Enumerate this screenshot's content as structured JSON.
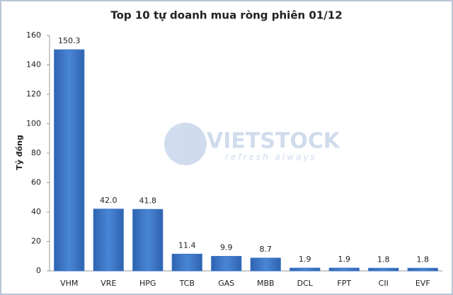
{
  "chart_data": {
    "type": "bar",
    "title": "Top 10 tự doanh mua ròng phiên 01/12",
    "ylabel": "Tỷ đồng",
    "categories": [
      "VHM",
      "VRE",
      "HPG",
      "TCB",
      "GAS",
      "MBB",
      "DCL",
      "FPT",
      "CII",
      "EVF"
    ],
    "values": [
      150.3,
      42.0,
      41.8,
      11.4,
      9.9,
      8.7,
      1.9,
      1.9,
      1.8,
      1.8
    ],
    "value_labels": [
      "150.3",
      "42.0",
      "41.8",
      "11.4",
      "9.9",
      "8.7",
      "1.9",
      "1.9",
      "1.8",
      "1.8"
    ],
    "color": "#3b74c6",
    "ylim": [
      0,
      160
    ],
    "yticks": [
      0,
      20,
      40,
      60,
      80,
      100,
      120,
      140,
      160
    ],
    "grid": false,
    "watermark": {
      "brand": "VIETSTOCK",
      "tagline": "refresh always"
    }
  }
}
